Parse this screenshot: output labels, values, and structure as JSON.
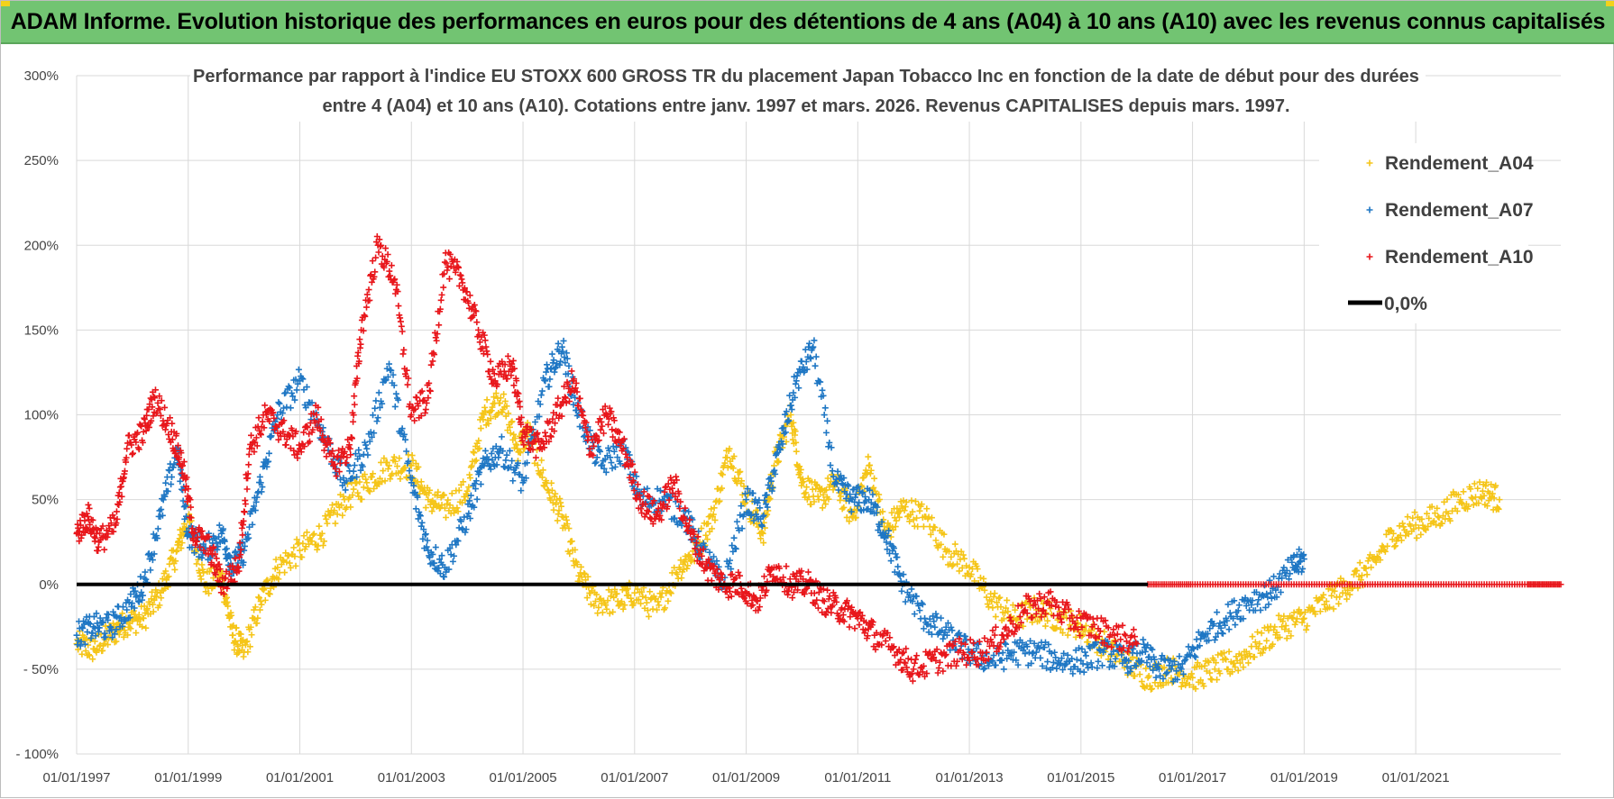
{
  "banner": {
    "title": "ADAM Informe. Evolution historique des performances en euros pour des détentions de 4 ans (A04) à 10 ans (A10) avec les revenus connus capitalisés",
    "background": "#72c472",
    "accent": "#f2d21b"
  },
  "chart_data": {
    "type": "scatter",
    "title_line1": "Performance par rapport à l'indice EU STOXX 600 GROSS TR  du placement Japan Tobacco Inc en fonction de la date de début pour des durées",
    "title_line2": "entre 4 (A04) et 10 ans (A10).  Cotations entre janv. 1997 et mars. 2026.  Revenus CAPITALISES depuis mars. 1997.",
    "xlabel": "",
    "ylabel": "",
    "xlim": [
      1997.0,
      2023.6
    ],
    "ylim": [
      -100,
      300
    ],
    "grid": true,
    "legend_position": "top-right",
    "y_ticks": [
      {
        "value": 300,
        "label": "300%"
      },
      {
        "value": 250,
        "label": "250%"
      },
      {
        "value": 200,
        "label": "200%"
      },
      {
        "value": 150,
        "label": "150%"
      },
      {
        "value": 100,
        "label": "100%"
      },
      {
        "value": 50,
        "label": "50%"
      },
      {
        "value": 0,
        "label": "0%"
      },
      {
        "value": -50,
        "label": "- 50%"
      },
      {
        "value": -100,
        "label": "- 100%"
      }
    ],
    "x_ticks": [
      {
        "value": 1997,
        "label": "01/01/1997"
      },
      {
        "value": 1999,
        "label": "01/01/1999"
      },
      {
        "value": 2001,
        "label": "01/01/2001"
      },
      {
        "value": 2003,
        "label": "01/01/2003"
      },
      {
        "value": 2005,
        "label": "01/01/2005"
      },
      {
        "value": 2007,
        "label": "01/01/2007"
      },
      {
        "value": 2009,
        "label": "01/01/2009"
      },
      {
        "value": 2011,
        "label": "01/01/2011"
      },
      {
        "value": 2013,
        "label": "01/01/2013"
      },
      {
        "value": 2015,
        "label": "01/01/2015"
      },
      {
        "value": 2017,
        "label": "01/01/2017"
      },
      {
        "value": 2019,
        "label": "01/01/2019"
      },
      {
        "value": 2021,
        "label": "01/01/2021"
      }
    ],
    "series": [
      {
        "name": "Rendement_A04",
        "color": "#f5c518",
        "x": [
          1997.0,
          1997.3,
          1997.6,
          1997.9,
          1998.2,
          1998.5,
          1998.8,
          1999.0,
          1999.3,
          1999.6,
          1999.8,
          2000.0,
          2000.3,
          2000.6,
          2001.0,
          2001.4,
          2001.8,
          2002.2,
          2002.6,
          2003.0,
          2003.3,
          2003.6,
          2004.0,
          2004.3,
          2004.6,
          2004.9,
          2005.1,
          2005.4,
          2005.7,
          2006.0,
          2006.3,
          2006.7,
          2007.0,
          2007.4,
          2007.8,
          2008.1,
          2008.4,
          2008.7,
          2009.0,
          2009.3,
          2009.5,
          2009.8,
          2010.0,
          2010.3,
          2010.6,
          2010.9,
          2011.2,
          2011.5,
          2011.8,
          2012.2,
          2012.6,
          2013.0,
          2013.4,
          2013.8,
          2014.2,
          2014.6,
          2015.0,
          2015.4,
          2015.8,
          2016.2,
          2016.6,
          2017.0,
          2017.4,
          2017.8,
          2018.2,
          2018.6,
          2019.0,
          2019.4,
          2019.8,
          2020.2,
          2020.6,
          2021.0,
          2021.4,
          2021.8,
          2022.2,
          2022.5
        ],
        "y": [
          -35,
          -38,
          -30,
          -22,
          -20,
          -5,
          20,
          40,
          0,
          5,
          -30,
          -40,
          -10,
          10,
          20,
          30,
          50,
          60,
          70,
          70,
          50,
          45,
          55,
          100,
          110,
          80,
          90,
          60,
          40,
          5,
          -10,
          -10,
          -5,
          -15,
          10,
          20,
          40,
          80,
          50,
          30,
          70,
          100,
          60,
          50,
          60,
          40,
          70,
          30,
          45,
          40,
          20,
          10,
          -10,
          -20,
          -15,
          -20,
          -25,
          -35,
          -45,
          -55,
          -50,
          -55,
          -50,
          -45,
          -35,
          -25,
          -20,
          -10,
          0,
          10,
          30,
          35,
          40,
          50,
          55,
          50
        ]
      },
      {
        "name": "Rendement_A07",
        "color": "#1f77c4",
        "x": [
          1997.0,
          1997.3,
          1997.6,
          1997.9,
          1998.2,
          1998.5,
          1998.8,
          1999.0,
          1999.3,
          1999.6,
          1999.8,
          2000.0,
          2000.3,
          2000.6,
          2001.0,
          2001.4,
          2001.8,
          2002.2,
          2002.6,
          2003.0,
          2003.3,
          2003.6,
          2004.0,
          2004.3,
          2004.6,
          2005.0,
          2005.4,
          2005.7,
          2006.0,
          2006.4,
          2006.8,
          2007.1,
          2007.5,
          2007.9,
          2008.2,
          2008.6,
          2009.0,
          2009.3,
          2009.6,
          2009.9,
          2010.2,
          2010.6,
          2010.9,
          2011.2,
          2011.5,
          2011.8,
          2012.2,
          2012.6,
          2013.0,
          2013.4,
          2013.8,
          2014.2,
          2014.6,
          2015.0,
          2015.4,
          2015.8,
          2016.1,
          2016.4,
          2016.8,
          2017.2,
          2017.6,
          2018.0,
          2018.4,
          2018.8,
          2019.0
        ],
        "y": [
          -30,
          -25,
          -25,
          -15,
          0,
          40,
          80,
          30,
          20,
          30,
          10,
          20,
          60,
          100,
          120,
          90,
          60,
          80,
          130,
          60,
          20,
          10,
          40,
          70,
          80,
          60,
          120,
          140,
          100,
          70,
          80,
          50,
          50,
          40,
          20,
          0,
          50,
          40,
          80,
          120,
          140,
          60,
          50,
          50,
          30,
          0,
          -20,
          -30,
          -40,
          -45,
          -40,
          -40,
          -45,
          -45,
          -40,
          -45,
          -40,
          -50,
          -50,
          -30,
          -20,
          -10,
          -5,
          10,
          15
        ]
      },
      {
        "name": "Rendement_A10",
        "color": "#e8161b",
        "x": [
          1997.0,
          1997.2,
          1997.4,
          1997.7,
          1997.9,
          1998.2,
          1998.4,
          1998.7,
          1998.9,
          1999.1,
          1999.4,
          1999.6,
          1999.9,
          2000.1,
          2000.4,
          2000.7,
          2001.0,
          2001.3,
          2001.6,
          2001.9,
          2002.1,
          2002.4,
          2002.7,
          2003.0,
          2003.3,
          2003.6,
          2003.9,
          2004.2,
          2004.5,
          2004.8,
          2005.0,
          2005.3,
          2005.6,
          2005.9,
          2006.2,
          2006.5,
          2006.8,
          2007.1,
          2007.4,
          2007.7,
          2008.0,
          2008.3,
          2008.6,
          2008.9,
          2009.2,
          2009.5,
          2009.8,
          2010.1,
          2010.4,
          2010.7,
          2011.0,
          2011.3,
          2011.7,
          2012.0,
          2012.4,
          2012.8,
          2013.2,
          2013.6,
          2014.0,
          2014.4,
          2014.8,
          2015.2,
          2015.6,
          2016.0
        ],
        "y": [
          30,
          40,
          25,
          35,
          80,
          90,
          110,
          90,
          70,
          30,
          20,
          0,
          10,
          80,
          100,
          90,
          80,
          100,
          70,
          80,
          150,
          200,
          180,
          100,
          110,
          190,
          180,
          150,
          120,
          130,
          90,
          80,
          100,
          120,
          80,
          100,
          80,
          50,
          40,
          60,
          30,
          10,
          0,
          0,
          -10,
          10,
          0,
          0,
          -10,
          -15,
          -20,
          -30,
          -40,
          -50,
          -45,
          -40,
          -40,
          -30,
          -15,
          -10,
          -20,
          -25,
          -30,
          -35
        ]
      },
      {
        "name": "Rendement_A10",
        "color": "#e8161b",
        "x": [
          2016.2,
          2017.0,
          2018.0,
          2019.0,
          2020.0,
          2021.0,
          2022.0,
          2023.0,
          2023.6
        ],
        "y": [
          0,
          0,
          0,
          0,
          0,
          0,
          0,
          0,
          0
        ]
      }
    ],
    "legend": [
      {
        "label": "Rendement_A04",
        "color": "#f5c518",
        "marker": "+"
      },
      {
        "label": "Rendement_A07",
        "color": "#1f77c4",
        "marker": "+"
      },
      {
        "label": "Rendement_A10",
        "color": "#e8161b",
        "marker": "+"
      },
      {
        "label": "0,0%",
        "color": "#000000",
        "marker": "line"
      }
    ],
    "reference_line": {
      "y": 0,
      "x_range": [
        1997.0,
        2016.2
      ],
      "color": "#000000"
    }
  }
}
